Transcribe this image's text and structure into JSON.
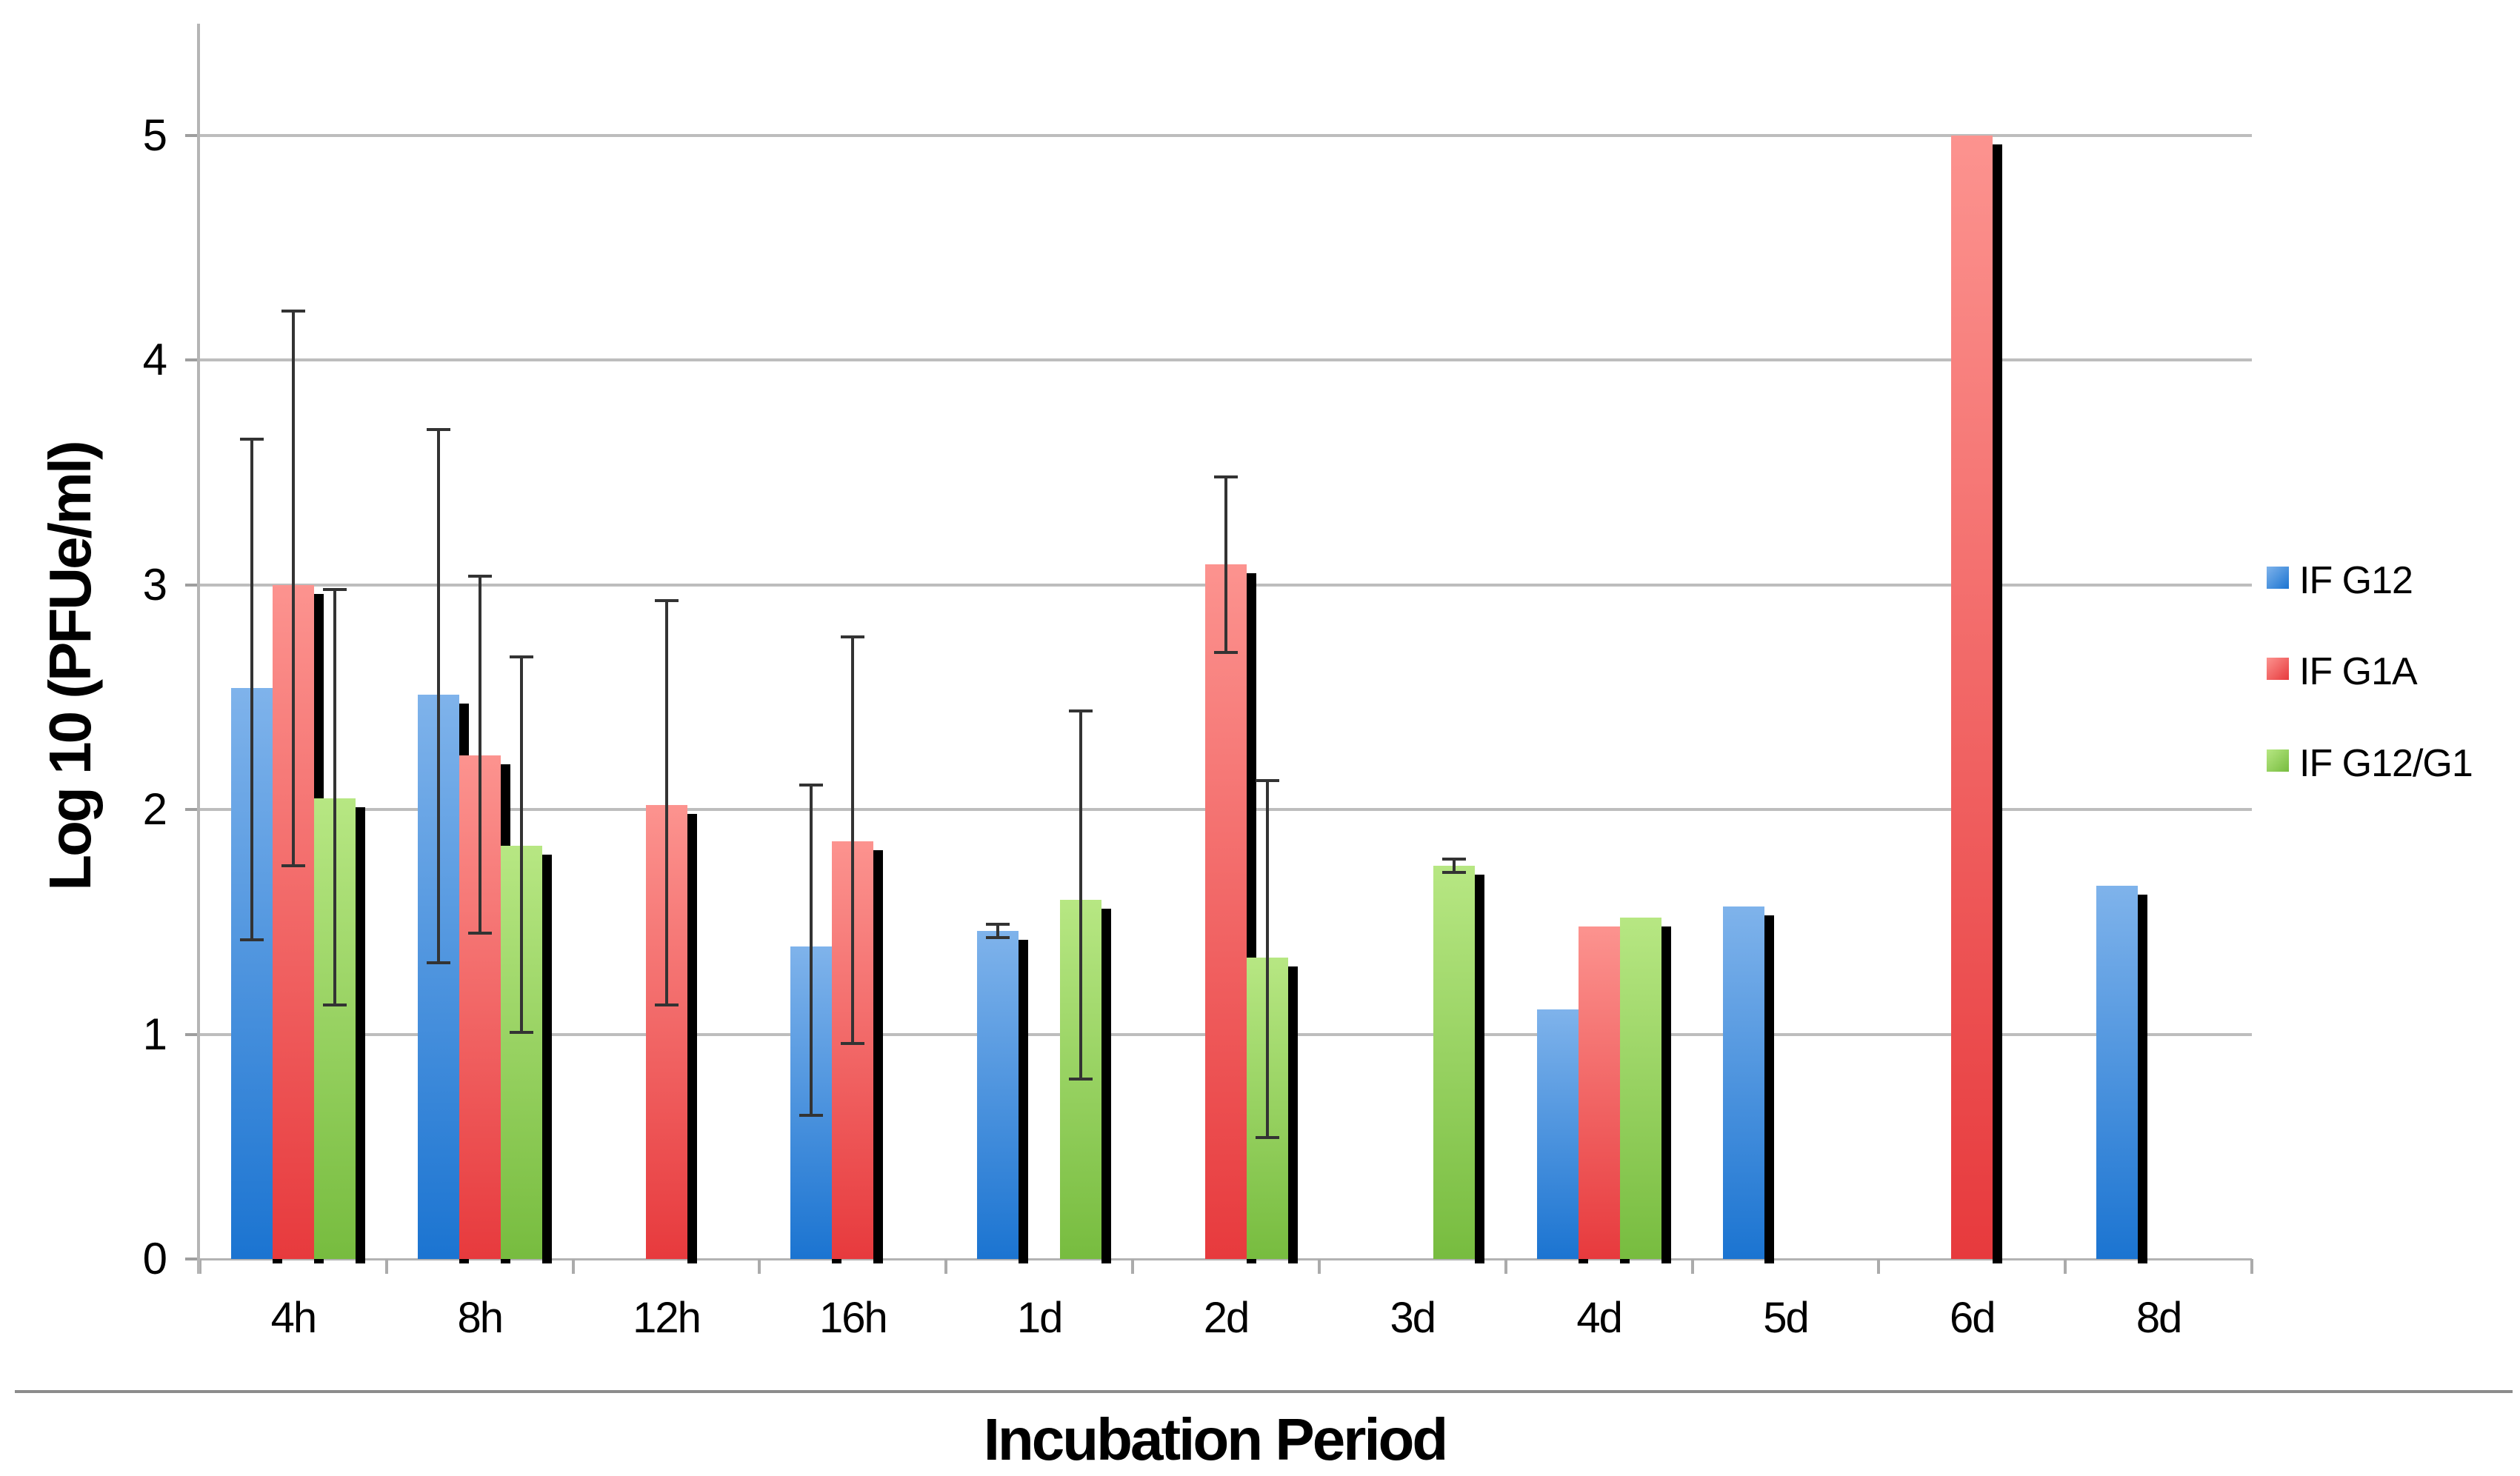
{
  "figure": {
    "x_axis_title": "Incubation Period",
    "y_axis_title": "Log 10 (PFUe/ml)"
  },
  "legend": {
    "items": [
      {
        "label": "IF G12",
        "color": "#2F83DB"
      },
      {
        "label": "IF G1A",
        "color": "#EF5A5B"
      },
      {
        "label": "IF G12/G1",
        "color": "#8CCB55"
      }
    ]
  },
  "chart_data": {
    "type": "bar",
    "title": "",
    "xlabel": "Incubation Period",
    "ylabel": "Log 10 (PFUe/ml)",
    "ylim": [
      0,
      5
    ],
    "y_ticks": [
      "0",
      "1",
      "2",
      "3",
      "4",
      "5"
    ],
    "grid": true,
    "legend_position": "right",
    "categories": [
      "4h",
      "8h",
      "12h",
      "16h",
      "1d",
      "2d",
      "3d",
      "4d",
      "5d",
      "6d",
      "8d"
    ],
    "series": [
      {
        "name": "IF G12",
        "color_top": "#7FB3EB",
        "color_bottom": "#1B74D1",
        "values": [
          2.54,
          2.51,
          null,
          1.39,
          1.46,
          null,
          null,
          1.11,
          1.57,
          null,
          1.66
        ],
        "error_low": [
          1.42,
          1.32,
          null,
          0.64,
          1.43,
          null,
          null,
          null,
          null,
          null,
          null
        ],
        "error_high": [
          3.65,
          3.69,
          null,
          2.11,
          1.49,
          null,
          null,
          null,
          null,
          null,
          null
        ]
      },
      {
        "name": "IF G1A",
        "color_top": "#FC938F",
        "color_bottom": "#E73A3D",
        "values": [
          3.0,
          2.24,
          2.02,
          1.86,
          null,
          3.09,
          null,
          1.48,
          null,
          5.0,
          null
        ],
        "error_low": [
          1.75,
          1.45,
          1.13,
          0.96,
          null,
          2.7,
          null,
          null,
          null,
          null,
          null
        ],
        "error_high": [
          4.22,
          3.04,
          2.93,
          2.77,
          null,
          3.48,
          null,
          null,
          null,
          null,
          null
        ]
      },
      {
        "name": "IF G12/G1",
        "color_top": "#B7E783",
        "color_bottom": "#77BC3F",
        "values": [
          2.05,
          1.84,
          null,
          null,
          1.6,
          1.34,
          1.75,
          1.52,
          null,
          null,
          null
        ],
        "error_low": [
          1.13,
          1.01,
          null,
          null,
          0.8,
          0.54,
          1.72,
          null,
          null,
          null,
          null
        ],
        "error_high": [
          2.98,
          2.68,
          null,
          null,
          2.44,
          2.13,
          1.78,
          null,
          null,
          null,
          null
        ]
      }
    ],
    "bar_shadow_color": "#000000",
    "error_bar_color": "#333333",
    "gridline_color": "#BDBDBD"
  }
}
